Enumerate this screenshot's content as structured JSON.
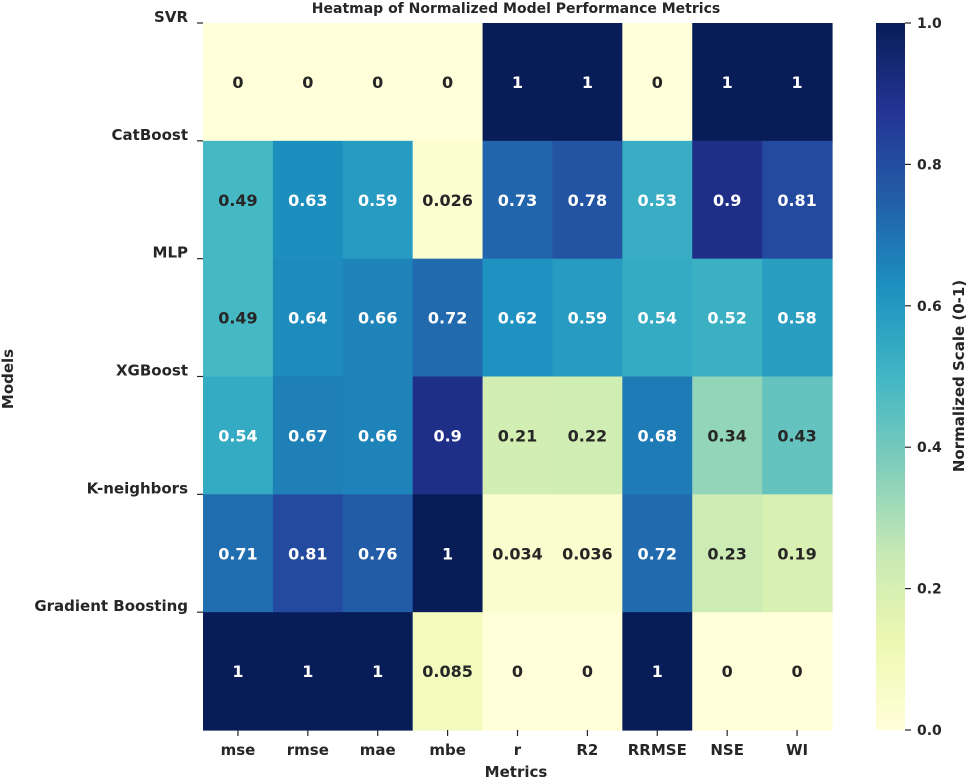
{
  "chart_data": {
    "type": "heatmap",
    "title": "Heatmap of Normalized Model Performance Metrics",
    "xlabel": "Metrics",
    "ylabel": "Models",
    "columns": [
      "mse",
      "rmse",
      "mae",
      "mbe",
      "r",
      "R2",
      "RRMSE",
      "NSE",
      "WI"
    ],
    "rows": [
      "SVR",
      "CatBoost",
      "MLP",
      "XGBoost",
      "K-neighbors",
      "Gradient Boosting"
    ],
    "values": [
      [
        0,
        0,
        0,
        0,
        1,
        1,
        0,
        1,
        1
      ],
      [
        0.49,
        0.63,
        0.59,
        0.026,
        0.73,
        0.78,
        0.53,
        0.9,
        0.81
      ],
      [
        0.49,
        0.64,
        0.66,
        0.72,
        0.62,
        0.59,
        0.54,
        0.52,
        0.58
      ],
      [
        0.54,
        0.67,
        0.66,
        0.9,
        0.21,
        0.22,
        0.68,
        0.34,
        0.43
      ],
      [
        0.71,
        0.81,
        0.76,
        1,
        0.034,
        0.036,
        0.72,
        0.23,
        0.19
      ],
      [
        1,
        1,
        1,
        0.085,
        0,
        0,
        1,
        0,
        0
      ]
    ],
    "labels": [
      [
        "0",
        "0",
        "0",
        "0",
        "1",
        "1",
        "0",
        "1",
        "1"
      ],
      [
        "0.49",
        "0.63",
        "0.59",
        "0.026",
        "0.73",
        "0.78",
        "0.53",
        "0.9",
        "0.81"
      ],
      [
        "0.49",
        "0.64",
        "0.66",
        "0.72",
        "0.62",
        "0.59",
        "0.54",
        "0.52",
        "0.58"
      ],
      [
        "0.54",
        "0.67",
        "0.66",
        "0.9",
        "0.21",
        "0.22",
        "0.68",
        "0.34",
        "0.43"
      ],
      [
        "0.71",
        "0.81",
        "0.76",
        "1",
        "0.034",
        "0.036",
        "0.72",
        "0.23",
        "0.19"
      ],
      [
        "1",
        "1",
        "1",
        "0.085",
        "0",
        "0",
        "1",
        "0",
        "0"
      ]
    ],
    "colorbar": {
      "label": "Normalized Scale (0-1)",
      "range": [
        0,
        1
      ],
      "ticks": [
        "0.0",
        "0.2",
        "0.4",
        "0.6",
        "0.8",
        "1.0"
      ],
      "colormap": "YlGnBu"
    }
  }
}
